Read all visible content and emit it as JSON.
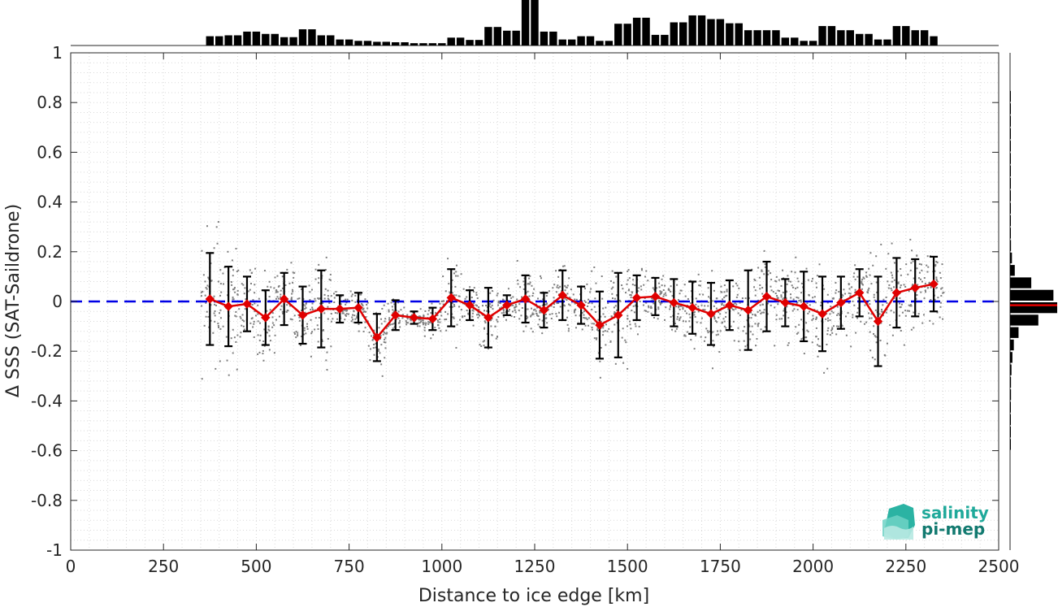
{
  "chart_data": {
    "type": "scatter",
    "xlabel": "Distance to ice edge [km]",
    "ylabel": "Δ SSS (SAT-Saildrone)",
    "xlim": [
      0,
      2500
    ],
    "ylim": [
      -1,
      1
    ],
    "xticks": [
      0,
      250,
      500,
      750,
      1000,
      1250,
      1500,
      1750,
      2000,
      2250,
      2500
    ],
    "yticks": [
      -1,
      -0.8,
      -0.6,
      -0.4,
      -0.2,
      0,
      0.2,
      0.4,
      0.6,
      0.8,
      1
    ],
    "ytick_labels": [
      "-1",
      "-0.8",
      "-0.6",
      "-0.4",
      "-0.2",
      "0",
      "0.2",
      "0.4",
      "0.6",
      "0.8",
      "1"
    ],
    "grid": true,
    "zero_line": {
      "y": 0,
      "color": "#0000e6",
      "style": "dashed"
    },
    "binned_mean": {
      "color": "#e00000",
      "marker": "diamond",
      "x": [
        375,
        425,
        475,
        525,
        575,
        625,
        675,
        725,
        775,
        825,
        875,
        925,
        975,
        1025,
        1075,
        1125,
        1175,
        1225,
        1275,
        1325,
        1375,
        1425,
        1475,
        1525,
        1575,
        1625,
        1675,
        1725,
        1775,
        1825,
        1875,
        1925,
        1975,
        2025,
        2075,
        2125,
        2175,
        2225,
        2275,
        2325
      ],
      "mean": [
        0.01,
        -0.02,
        -0.01,
        -0.065,
        0.01,
        -0.055,
        -0.03,
        -0.03,
        -0.025,
        -0.145,
        -0.055,
        -0.065,
        -0.07,
        0.015,
        -0.015,
        -0.065,
        -0.015,
        0.01,
        -0.035,
        0.025,
        -0.015,
        -0.095,
        -0.055,
        0.015,
        0.02,
        -0.005,
        -0.025,
        -0.05,
        -0.015,
        -0.035,
        0.02,
        -0.005,
        -0.02,
        -0.05,
        -0.005,
        0.035,
        -0.08,
        0.035,
        0.055,
        0.07
      ],
      "std": [
        0.185,
        0.16,
        0.11,
        0.11,
        0.105,
        0.115,
        0.155,
        0.055,
        0.06,
        0.095,
        0.06,
        0.025,
        0.045,
        0.115,
        0.06,
        0.12,
        0.04,
        0.095,
        0.07,
        0.1,
        0.075,
        0.135,
        0.17,
        0.09,
        0.075,
        0.095,
        0.105,
        0.125,
        0.1,
        0.16,
        0.14,
        0.095,
        0.14,
        0.15,
        0.105,
        0.095,
        0.18,
        0.14,
        0.115,
        0.11
      ]
    },
    "scatter_points": {
      "color": "#7f7f7f",
      "note_on_values": "individual samples, dense grey dots between roughly -0.35 and 0.3"
    },
    "top_histogram": {
      "color": "#000000",
      "bin_width_km": 25,
      "x_centers": [
        375,
        400,
        425,
        450,
        475,
        500,
        525,
        550,
        575,
        600,
        625,
        650,
        675,
        700,
        725,
        750,
        775,
        800,
        825,
        850,
        875,
        900,
        925,
        950,
        975,
        1000,
        1025,
        1050,
        1075,
        1100,
        1125,
        1150,
        1175,
        1200,
        1225,
        1250,
        1275,
        1300,
        1325,
        1350,
        1375,
        1400,
        1425,
        1450,
        1475,
        1500,
        1525,
        1550,
        1575,
        1600,
        1625,
        1650,
        1675,
        1700,
        1725,
        1750,
        1775,
        1800,
        1825,
        1850,
        1875,
        1900,
        1925,
        1950,
        1975,
        2000,
        2025,
        2050,
        2075,
        2100,
        2125,
        2150,
        2175,
        2200,
        2225,
        2250,
        2275,
        2300,
        2325
      ],
      "relative_counts": [
        0.2,
        0.2,
        0.22,
        0.22,
        0.3,
        0.3,
        0.25,
        0.25,
        0.18,
        0.18,
        0.35,
        0.35,
        0.22,
        0.22,
        0.13,
        0.13,
        0.1,
        0.1,
        0.08,
        0.08,
        0.07,
        0.07,
        0.05,
        0.05,
        0.05,
        0.05,
        0.17,
        0.17,
        0.12,
        0.12,
        0.4,
        0.4,
        0.32,
        0.32,
        1.0,
        1.0,
        0.3,
        0.3,
        0.13,
        0.13,
        0.2,
        0.2,
        0.1,
        0.1,
        0.47,
        0.47,
        0.6,
        0.6,
        0.23,
        0.23,
        0.5,
        0.5,
        0.65,
        0.65,
        0.57,
        0.57,
        0.48,
        0.48,
        0.33,
        0.33,
        0.33,
        0.33,
        0.17,
        0.17,
        0.1,
        0.1,
        0.42,
        0.42,
        0.33,
        0.33,
        0.25,
        0.25,
        0.13,
        0.13,
        0.42,
        0.42,
        0.33,
        0.33,
        0.2
      ]
    },
    "right_histogram": {
      "color": "#000000",
      "median_line_color": "#e00000",
      "median_y": -0.015,
      "bin_width": 0.05,
      "y_centers": [
        0.825,
        0.775,
        0.725,
        0.675,
        0.625,
        0.575,
        0.525,
        0.475,
        0.425,
        0.375,
        0.325,
        0.275,
        0.225,
        0.175,
        0.125,
        0.075,
        0.025,
        -0.025,
        -0.075,
        -0.125,
        -0.175,
        -0.225,
        -0.275,
        -0.325,
        -0.375,
        -0.425,
        -0.475,
        -0.525,
        -0.575
      ],
      "relative_counts": [
        0.01,
        0.01,
        0.01,
        0.01,
        0.01,
        0.01,
        0.01,
        0.01,
        0.01,
        0.01,
        0.01,
        0.01,
        0.02,
        0.04,
        0.1,
        0.45,
        0.92,
        1.0,
        0.6,
        0.18,
        0.08,
        0.05,
        0.03,
        0.02,
        0.02,
        0.01,
        0.01,
        0.01,
        0.01
      ]
    }
  },
  "logo": {
    "line1": "salinity",
    "line2": "pi-mep",
    "color1": "#1fa99a",
    "color2": "#127a70"
  }
}
